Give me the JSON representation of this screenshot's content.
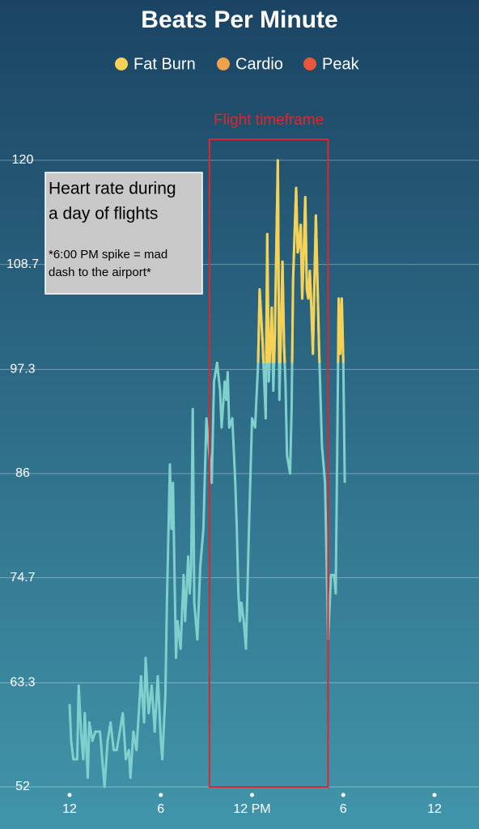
{
  "chart_data": {
    "type": "line",
    "title": "Beats Per Minute",
    "legend": [
      {
        "name": "Fat Burn",
        "color": "#f7d154"
      },
      {
        "name": "Cardio",
        "color": "#f0a04b"
      },
      {
        "name": "Peak",
        "color": "#e8573a"
      }
    ],
    "zone_min": 98,
    "series": [
      {
        "color": "#7fd0cc",
        "x": [
          0.0,
          0.1,
          0.25,
          0.5,
          0.6,
          0.75,
          0.9,
          1.0,
          1.2,
          1.3,
          1.5,
          1.7,
          2.0,
          2.2,
          2.3,
          2.5,
          2.7,
          2.9,
          3.1,
          3.3,
          3.5,
          3.7,
          3.9,
          4.0,
          4.2,
          4.4,
          4.7,
          4.9,
          5.0,
          5.2,
          5.4,
          5.6,
          5.8,
          6.0,
          6.1,
          6.3,
          6.4,
          6.6,
          6.7,
          6.8,
          6.9,
          7.0,
          7.1,
          7.3,
          7.5,
          7.6,
          7.8,
          7.9,
          8.0,
          8.1,
          8.2,
          8.4,
          8.6,
          8.8,
          9.0,
          9.2,
          9.35,
          9.5,
          9.7,
          9.9,
          10.0,
          10.2,
          10.3,
          10.4,
          10.5,
          10.7,
          10.9,
          11.0,
          11.1,
          11.2,
          11.3,
          11.45,
          11.6,
          11.8,
          12.0,
          12.2,
          12.4,
          12.5,
          12.7,
          12.9,
          13.0,
          13.1,
          13.3,
          13.4,
          13.5,
          13.7,
          13.8,
          14.0,
          14.1,
          14.2,
          14.3,
          14.5,
          14.6,
          14.7,
          14.8,
          14.9,
          15.0,
          15.1,
          15.2,
          15.3,
          15.4,
          15.5,
          15.6,
          15.7,
          15.8,
          15.9,
          16.0,
          16.2,
          16.4,
          16.6,
          16.8,
          17.0,
          17.2,
          17.4,
          17.5,
          17.6,
          17.7,
          17.8,
          17.9,
          18.0,
          18.1
        ],
        "values": [
          61,
          57,
          55,
          55,
          63,
          58,
          55,
          60,
          53,
          59,
          57,
          58,
          58,
          54,
          52,
          57,
          59,
          56,
          56,
          58,
          60,
          55,
          56,
          53,
          58,
          56,
          64,
          59,
          66,
          60,
          63,
          58,
          64,
          57,
          55,
          62,
          72,
          87,
          80,
          85,
          75,
          66,
          70,
          67,
          75,
          70,
          77,
          73,
          76,
          93,
          72,
          68,
          76,
          80,
          92,
          88,
          85,
          96,
          98,
          95,
          91,
          96,
          94,
          97,
          91,
          92,
          85,
          80,
          73,
          70,
          72,
          70,
          67,
          80,
          92,
          91,
          98,
          106,
          100,
          92,
          112,
          96,
          104,
          95,
          101,
          120,
          94,
          109,
          100,
          96,
          88,
          86,
          93,
          107,
          112,
          117,
          110,
          111,
          113,
          105,
          110,
          116,
          106,
          105,
          108,
          104,
          99,
          114,
          100,
          89,
          85,
          68,
          75,
          75,
          73,
          88,
          105,
          99,
          105,
          98,
          85
        ]
      }
    ],
    "xlim": [
      0,
      24
    ],
    "xticks": [
      {
        "value": 0,
        "label": "12"
      },
      {
        "value": 6,
        "label": "6"
      },
      {
        "value": 12,
        "label": "12 PM"
      },
      {
        "value": 18,
        "label": "6"
      },
      {
        "value": 24,
        "label": "12"
      }
    ],
    "ylim": [
      52,
      120
    ],
    "yticks": [
      52,
      63.3,
      74.7,
      86,
      97.3,
      108.7,
      120
    ],
    "grid": true,
    "flight": {
      "label": "Flight timeframe",
      "span": [
        9.2,
        17.0
      ],
      "color": "#e0252e"
    },
    "note": {
      "title": [
        "Heart rate during",
        "a day of flights"
      ],
      "text": [
        "*6:00 PM spike = mad",
        "dash to the airport*"
      ]
    }
  }
}
